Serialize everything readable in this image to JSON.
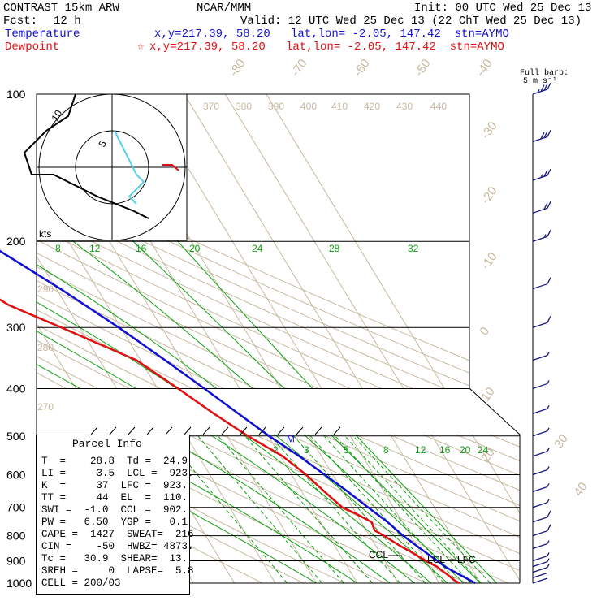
{
  "header": {
    "title": "CONTRAST 15km ARW",
    "org": "NCAR/MMM",
    "init": "Init: 00 UTC Wed 25 Dec 13",
    "fcst_label": "Fcst:",
    "fcst_value": "12 h",
    "valid": "Valid: 12 UTC Wed 25 Dec 13 (22 ChT Wed 25 Dec 13)",
    "temp_label": "Temperature",
    "temp_info": "x,y=217.39, 58.20   lat,lon= -2.05, 147.42  stn=AYMO",
    "dew_label": "Dewpoint",
    "dew_star": "☆",
    "dew_info": "x,y=217.39, 58.20   lat,lon= -2.05, 147.42  stn=AYMO"
  },
  "colors": {
    "temperature": "#1010d0",
    "dewpoint": "#e01010",
    "isotherm": "#c8b8a0",
    "mixing_ratio": "#10a010",
    "frame": "#000000"
  },
  "barb_header": {
    "line1": "Full barb:",
    "line2": "5 m s⁻¹"
  },
  "hodograph": {
    "unit": "kts",
    "ring_labels": [
      "5",
      "10"
    ]
  },
  "parcel_info": {
    "title": "Parcel Info",
    "rows": [
      "T  =    28.8  Td =  24.9",
      "LI =    -3.5  LCL =  923.",
      "K  =     37  LFC =  923.",
      "TT =     44  EL  =  110.",
      "SWI =  -1.0  CCL =  902.",
      "PW =   6.50  YGP =   0.1",
      "CAPE =  1427  SWEAT=  216",
      "CIN =    -50  HWBZ= 4873.",
      "Tc =   30.9  SHEAR=  13.",
      "SREH =     0  LAPSE=  5.8",
      "CELL = 200/03"
    ]
  },
  "chart_data": {
    "type": "line",
    "title": "",
    "y_axis": {
      "label": "",
      "scale": "log-pressure",
      "ylim": [
        1000,
        100
      ],
      "tick_labels": [
        "100",
        "200",
        "300",
        "400",
        "500",
        "600",
        "700",
        "800",
        "900",
        "1000"
      ]
    },
    "isotherm_labels": [
      "-80",
      "-70",
      "-60",
      "-50",
      "-40",
      "-30",
      "-20",
      "-10",
      "0",
      "10",
      "20",
      "30",
      "40"
    ],
    "theta_labels": [
      "370",
      "380",
      "390",
      "400",
      "410",
      "420",
      "430",
      "440",
      "290",
      "280",
      "270"
    ],
    "mixing_ratio_labels_upper": [
      "8",
      "12",
      "16",
      "20",
      "24",
      "28",
      "32"
    ],
    "mixing_ratio_labels_lower": [
      "2",
      "3",
      "5",
      "8",
      "12",
      "16",
      "20",
      "24"
    ],
    "levels": [
      {
        "name": "EL",
        "label": "EL",
        "pressure": 110
      },
      {
        "name": "LCL",
        "label": "LCL",
        "pressure": 923
      },
      {
        "name": "LFC",
        "label": "LFC",
        "pressure": 923
      },
      {
        "name": "CCL",
        "label": "CCL",
        "pressure": 902
      },
      {
        "name": "M",
        "label": "M",
        "pressure": 505
      }
    ],
    "series": [
      {
        "name": "Temperature",
        "color": "#1010d0",
        "points": [
          [
            1000,
            28.8
          ],
          [
            950,
            25.5
          ],
          [
            925,
            23.8
          ],
          [
            900,
            22.8
          ],
          [
            850,
            20.5
          ],
          [
            800,
            18.2
          ],
          [
            750,
            16.4
          ],
          [
            700,
            13.8
          ],
          [
            650,
            11.2
          ],
          [
            600,
            8.0
          ],
          [
            550,
            4.6
          ],
          [
            500,
            0.2
          ],
          [
            450,
            -4.0
          ],
          [
            400,
            -8.6
          ],
          [
            350,
            -14.0
          ],
          [
            300,
            -20.5
          ],
          [
            250,
            -29.0
          ],
          [
            200,
            -40.5
          ],
          [
            180,
            -46.0
          ],
          [
            150,
            -56.0
          ],
          [
            130,
            -63.5
          ],
          [
            115,
            -72.0
          ],
          [
            110,
            -76.0
          ],
          [
            105,
            -79.0
          ],
          [
            100,
            -79.0
          ]
        ]
      },
      {
        "name": "Dewpoint",
        "color": "#e01010",
        "points": [
          [
            1000,
            24.9
          ],
          [
            985,
            24.0
          ],
          [
            960,
            23.2
          ],
          [
            925,
            21.8
          ],
          [
            900,
            20.0
          ],
          [
            860,
            17.5
          ],
          [
            840,
            16.0
          ],
          [
            800,
            13.5
          ],
          [
            780,
            12.0
          ],
          [
            750,
            12.5
          ],
          [
            720,
            9.8
          ],
          [
            700,
            7.5
          ],
          [
            650,
            5.5
          ],
          [
            600,
            3.5
          ],
          [
            550,
            0.5
          ],
          [
            500,
            -5.0
          ],
          [
            450,
            -10.0
          ],
          [
            400,
            -15.0
          ],
          [
            350,
            -21.0
          ],
          [
            300,
            -34.5
          ],
          [
            270,
            -44.0
          ],
          [
            250,
            -48.0
          ],
          [
            230,
            -54.0
          ],
          [
            215,
            -60.5
          ],
          [
            200,
            -63.0
          ],
          [
            180,
            -64.0
          ],
          [
            175,
            -64.5
          ],
          [
            160,
            -68.5
          ],
          [
            150,
            -70.5
          ],
          [
            140,
            -73.5
          ],
          [
            130,
            -75.0
          ],
          [
            120,
            -78.0
          ],
          [
            110,
            -80.0
          ],
          [
            100,
            -81.5
          ]
        ]
      }
    ],
    "hodograph_points": [
      [
        -5,
        -10
      ],
      [
        -6,
        -7
      ],
      [
        -9,
        -5
      ],
      [
        -12,
        -2
      ],
      [
        -11,
        1
      ],
      [
        -8,
        1
      ],
      [
        -2,
        4
      ],
      [
        3,
        6
      ],
      [
        5,
        7
      ]
    ],
    "hodograph_points_2": [
      [
        -3,
        -5
      ],
      [
        -2,
        -3
      ],
      [
        -1,
        -1
      ],
      [
        0,
        1
      ],
      [
        1,
        2
      ],
      [
        0,
        3
      ],
      [
        -1,
        4
      ],
      [
        0,
        5
      ]
    ],
    "winds": [
      {
        "p": 1000,
        "speed_kt": 4
      },
      {
        "p": 975,
        "speed_kt": 3
      },
      {
        "p": 950,
        "speed_kt": 5
      },
      {
        "p": 925,
        "speed_kt": 6
      },
      {
        "p": 900,
        "speed_kt": 7
      },
      {
        "p": 850,
        "speed_kt": 8
      },
      {
        "p": 800,
        "speed_kt": 10
      },
      {
        "p": 750,
        "speed_kt": 10
      },
      {
        "p": 700,
        "speed_kt": 9
      },
      {
        "p": 650,
        "speed_kt": 8
      },
      {
        "p": 600,
        "speed_kt": 9
      },
      {
        "p": 550,
        "speed_kt": 8
      },
      {
        "p": 500,
        "speed_kt": 7
      },
      {
        "p": 450,
        "speed_kt": 8
      },
      {
        "p": 400,
        "speed_kt": 8
      },
      {
        "p": 350,
        "speed_kt": 9
      },
      {
        "p": 300,
        "speed_kt": 10
      },
      {
        "p": 250,
        "speed_kt": 10
      },
      {
        "p": 200,
        "speed_kt": 15
      },
      {
        "p": 175,
        "speed_kt": 20
      },
      {
        "p": 150,
        "speed_kt": 25
      },
      {
        "p": 125,
        "speed_kt": 30
      },
      {
        "p": 100,
        "speed_kt": 35
      }
    ]
  }
}
